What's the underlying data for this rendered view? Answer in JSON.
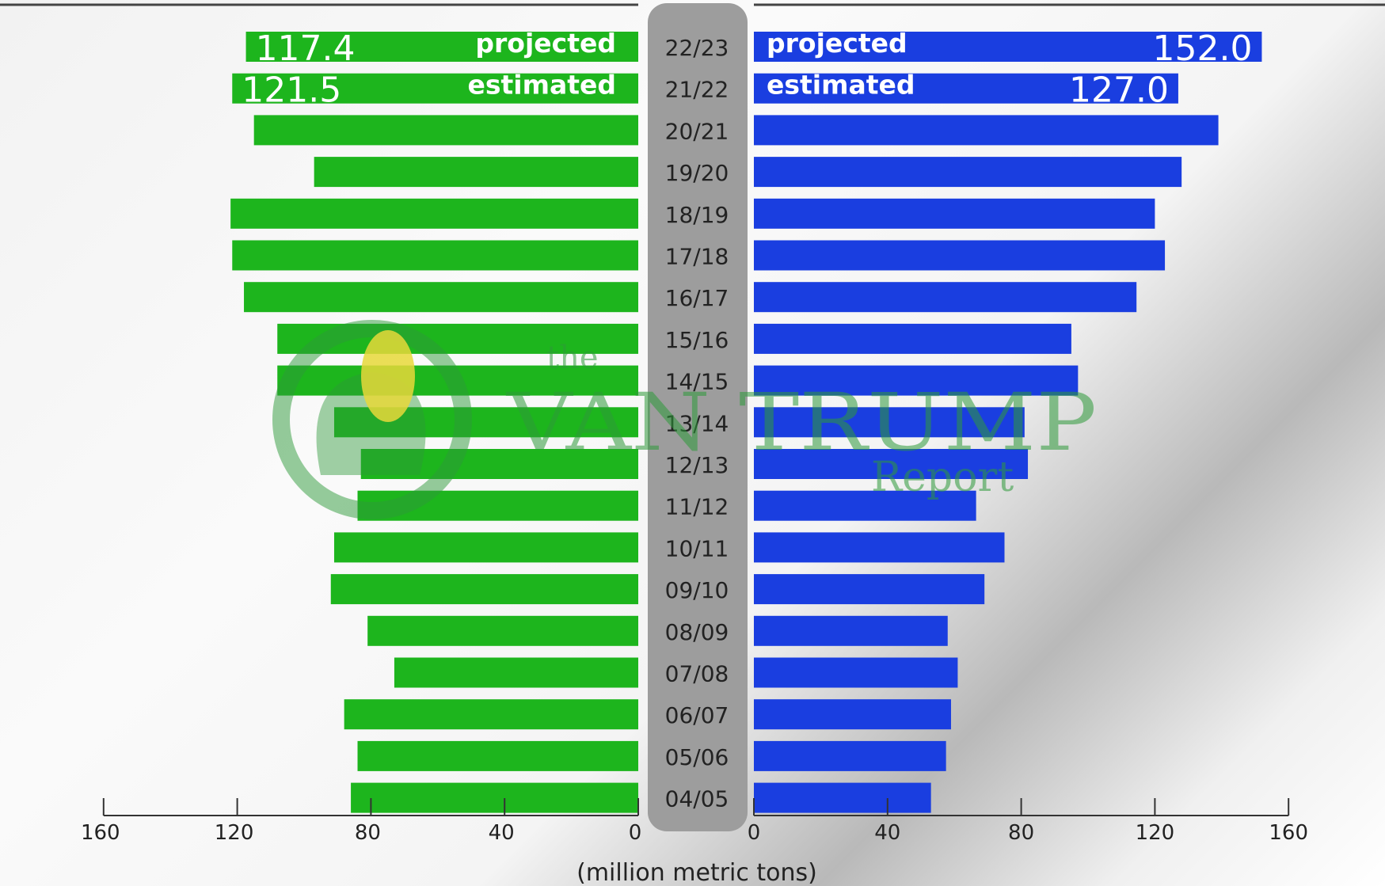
{
  "chart_data": {
    "type": "bar",
    "orientation": "horizontal-butterfly",
    "categories": [
      "22/23",
      "21/22",
      "20/21",
      "19/20",
      "18/19",
      "17/18",
      "16/17",
      "15/16",
      "14/15",
      "13/14",
      "12/13",
      "11/12",
      "10/11",
      "09/10",
      "08/09",
      "07/08",
      "06/07",
      "05/06",
      "04/05"
    ],
    "series": [
      {
        "side": "left",
        "color": "#1db51d",
        "values": [
          117.4,
          121.5,
          115,
          97,
          122,
          121.5,
          118,
          108,
          108,
          91,
          83,
          84,
          91,
          92,
          81,
          73,
          88,
          84,
          86
        ]
      },
      {
        "side": "right",
        "color": "#1a3ee0",
        "values": [
          152.0,
          127.0,
          139,
          128,
          120,
          123,
          114.5,
          95,
          97,
          81,
          82,
          66.5,
          75,
          69,
          58,
          61,
          59,
          57.5,
          53
        ]
      }
    ],
    "bar_labels": [
      {
        "category": "22/23",
        "side": "left",
        "value_text": "117.4",
        "tag": "projected"
      },
      {
        "category": "21/22",
        "side": "left",
        "value_text": "121.5",
        "tag": "estimated"
      },
      {
        "category": "22/23",
        "side": "right",
        "value_text": "152.0",
        "tag": "projected"
      },
      {
        "category": "21/22",
        "side": "right",
        "value_text": "127.0",
        "tag": "estimated"
      }
    ],
    "xlabel": "(million metric tons)",
    "left_axis": {
      "range": [
        160,
        0
      ],
      "ticks": [
        160,
        120,
        80,
        40,
        0
      ]
    },
    "right_axis": {
      "range": [
        0,
        160
      ],
      "ticks": [
        0,
        40,
        80,
        120,
        160
      ]
    },
    "grid": false,
    "legend": "none"
  },
  "watermark": {
    "line1": "the",
    "line2": "VAN TRUMP",
    "line3": "Report",
    "icon": "corn-cob-icon",
    "color": "#2e9a3a"
  }
}
